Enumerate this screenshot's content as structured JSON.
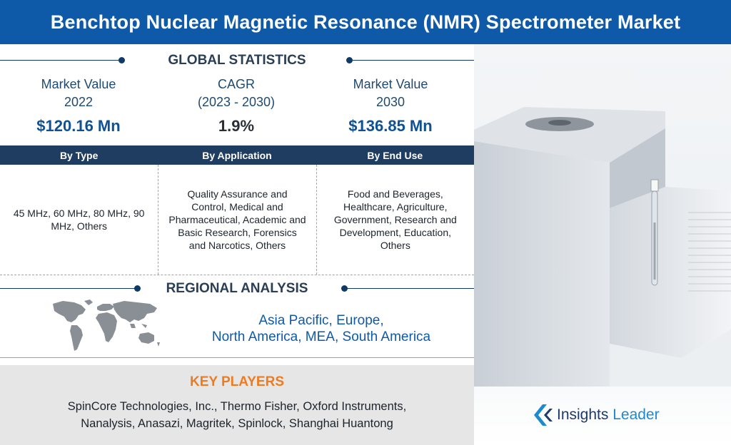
{
  "title": "Benchtop Nuclear Magnetic Resonance (NMR) Spectrometer Market",
  "global_statistics": {
    "heading": "GLOBAL STATISTICS",
    "stats": [
      {
        "label_line1": "Market Value",
        "label_line2": "2022",
        "value": "$120.16 Mn"
      },
      {
        "label_line1": "CAGR",
        "label_line2": "(2023 - 2030)",
        "value": "1.9%"
      },
      {
        "label_line1": "Market Value",
        "label_line2": "2030",
        "value": "$136.85 Mn"
      }
    ]
  },
  "segments": {
    "headers": [
      "By Type",
      "By Application",
      "By End Use"
    ],
    "values": [
      "45 MHz, 60 MHz, 80 MHz, 90 MHz, Others",
      "Quality Assurance and Control, Medical and Pharmaceutical, Academic and Basic Research, Forensics and Narcotics, Others",
      "Food and Beverages, Healthcare, Agriculture, Government, Research and Development, Education, Others"
    ]
  },
  "regional_analysis": {
    "heading": "REGIONAL ANALYSIS",
    "line1": "Asia Pacific, Europe,",
    "line2": "North America, MEA, South America"
  },
  "key_players": {
    "heading": "KEY PLAYERS",
    "line1": "SpinCore Technologies, Inc., Thermo Fisher, Oxford Instruments,",
    "line2": "Nanalysis, Anasazi, Magritek, Spinlock, Shanghai Huantong"
  },
  "brand": {
    "name_part1": "Insights",
    "name_part2": "Leader",
    "logo_icon": "chevron-logo-icon"
  },
  "colors": {
    "header_blue": "#0f5aa8",
    "segment_bar_navy": "#1e3d60",
    "value_blue": "#0e5194",
    "key_players_orange": "#f07a1e",
    "key_players_bg": "#e6e6e6"
  }
}
